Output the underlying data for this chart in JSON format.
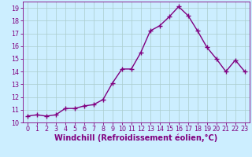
{
  "x": [
    0,
    1,
    2,
    3,
    4,
    5,
    6,
    7,
    8,
    9,
    10,
    11,
    12,
    13,
    14,
    15,
    16,
    17,
    18,
    19,
    20,
    21,
    22,
    23
  ],
  "y": [
    10.5,
    10.6,
    10.5,
    10.6,
    11.1,
    11.1,
    11.3,
    11.4,
    11.8,
    13.1,
    14.2,
    14.2,
    15.5,
    17.2,
    17.6,
    18.3,
    19.1,
    18.4,
    17.2,
    15.9,
    15.0,
    14.0,
    14.9,
    14.0
  ],
  "line_color": "#800080",
  "marker": "+",
  "marker_size": 4,
  "marker_linewidth": 1.0,
  "bg_color": "#cceeff",
  "grid_color": "#aacccc",
  "xlabel": "Windchill (Refroidissement éolien,°C)",
  "xlabel_color": "#800080",
  "xlim": [
    -0.5,
    23.5
  ],
  "ylim": [
    10,
    19.5
  ],
  "yticks": [
    10,
    11,
    12,
    13,
    14,
    15,
    16,
    17,
    18,
    19
  ],
  "xticks": [
    0,
    1,
    2,
    3,
    4,
    5,
    6,
    7,
    8,
    9,
    10,
    11,
    12,
    13,
    14,
    15,
    16,
    17,
    18,
    19,
    20,
    21,
    22,
    23
  ],
  "tick_color": "#800080",
  "tick_fontsize": 5.8,
  "xlabel_fontsize": 7.0,
  "linewidth": 1.0
}
